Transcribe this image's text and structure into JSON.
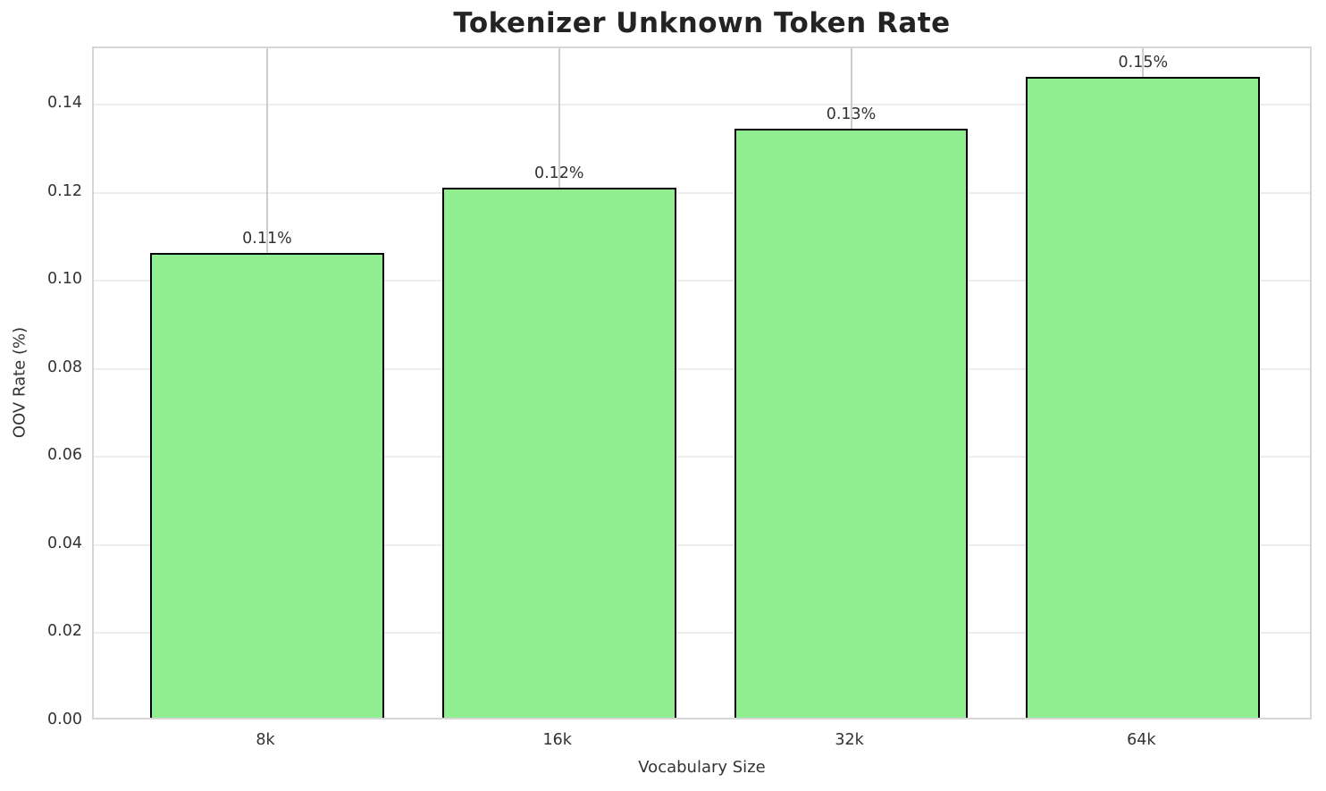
{
  "title": "Tokenizer Unknown Token Rate",
  "chart_data": {
    "type": "bar",
    "title": "Tokenizer Unknown Token Rate",
    "xlabel": "Vocabulary Size",
    "ylabel": "OOV Rate (%)",
    "categories": [
      "8k",
      "16k",
      "32k",
      "64k"
    ],
    "values": [
      0.1055,
      0.1204,
      0.1337,
      0.1455
    ],
    "bar_labels": [
      "0.11%",
      "0.12%",
      "0.13%",
      "0.15%"
    ],
    "yticks": [
      0,
      0.02,
      0.04,
      0.06,
      0.08,
      0.1,
      0.12,
      0.14
    ],
    "ytick_labels": [
      "0.00",
      "0.02",
      "0.04",
      "0.06",
      "0.08",
      "0.10",
      "0.12",
      "0.14"
    ],
    "ylim": [
      0,
      0.1528
    ],
    "grid": true,
    "legend": false,
    "colors": {
      "bar_fill": "#90EE90",
      "bar_edge": "#000000",
      "grid_h": "#ededed",
      "grid_v": "#cdcdcd",
      "spine": "#d6d6d6",
      "text": "#333333",
      "title_text": "#232323",
      "background": "#ffffff"
    }
  }
}
